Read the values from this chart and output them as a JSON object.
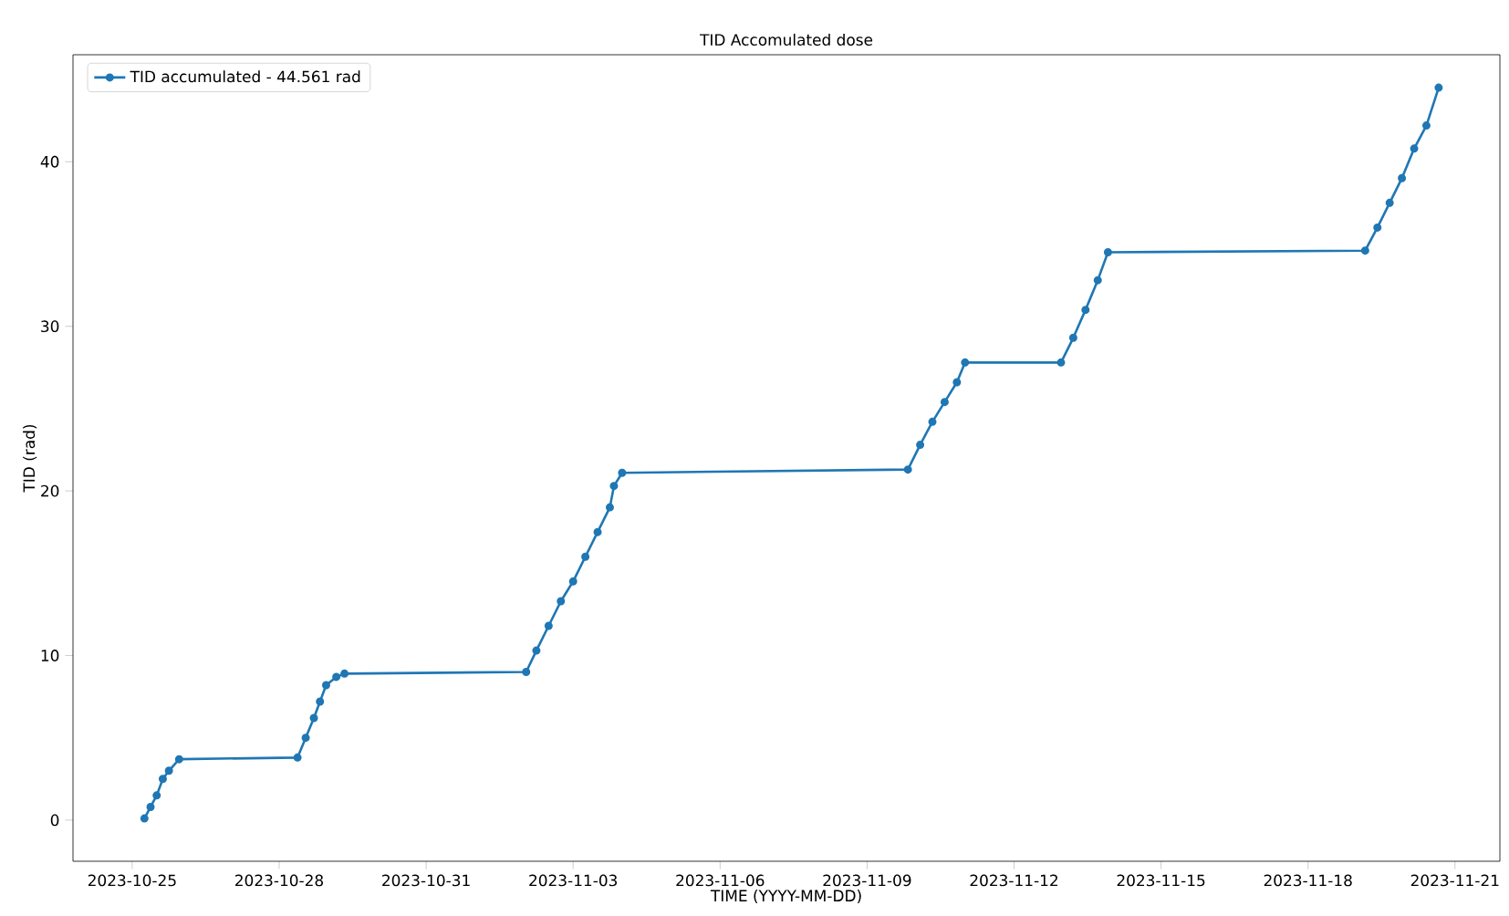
{
  "chart_data": {
    "type": "line",
    "title": "TID Accomulated dose",
    "xlabel": "TIME (YYYY-MM-DD)",
    "ylabel": "TID (rad)",
    "x": [
      "2023-10-25T06:00",
      "2023-10-25T09:00",
      "2023-10-25T12:00",
      "2023-10-25T15:00",
      "2023-10-25T18:00",
      "2023-10-25T23:00",
      "2023-10-28T09:00",
      "2023-10-28T13:00",
      "2023-10-28T17:00",
      "2023-10-28T20:00",
      "2023-10-28T23:00",
      "2023-10-29T04:00",
      "2023-10-29T08:00",
      "2023-11-02T01:00",
      "2023-11-02T06:00",
      "2023-11-02T12:00",
      "2023-11-02T18:00",
      "2023-11-03T00:00",
      "2023-11-03T06:00",
      "2023-11-03T12:00",
      "2023-11-03T18:00",
      "2023-11-03T20:00",
      "2023-11-04T00:00",
      "2023-11-09T20:00",
      "2023-11-10T02:00",
      "2023-11-10T08:00",
      "2023-11-10T14:00",
      "2023-11-10T20:00",
      "2023-11-11T00:00",
      "2023-11-12T23:00",
      "2023-11-13T05:00",
      "2023-11-13T11:00",
      "2023-11-13T17:00",
      "2023-11-13T22:00",
      "2023-11-19T04:00",
      "2023-11-19T10:00",
      "2023-11-19T16:00",
      "2023-11-19T22:00",
      "2023-11-20T04:00",
      "2023-11-20T10:00",
      "2023-11-20T16:00"
    ],
    "series": [
      {
        "name": "TID accumulated - 44.561 rad",
        "color": "#1f77b4",
        "values": [
          0.1,
          0.8,
          1.5,
          2.5,
          3.0,
          3.7,
          3.8,
          5.0,
          6.2,
          7.2,
          8.2,
          8.7,
          8.9,
          9.0,
          10.3,
          11.8,
          13.3,
          14.5,
          16.0,
          17.5,
          19.0,
          20.3,
          21.1,
          21.3,
          22.8,
          24.2,
          25.4,
          26.6,
          27.8,
          27.8,
          29.3,
          31.0,
          32.8,
          34.5,
          34.6,
          36.0,
          37.5,
          39.0,
          40.8,
          42.2,
          44.5
        ]
      }
    ],
    "xlim": [
      "2023-10-23T19:00",
      "2023-11-21T22:00"
    ],
    "ylim": [
      -2.5,
      46.5
    ],
    "xticks": [
      "2023-10-25",
      "2023-10-28",
      "2023-10-31",
      "2023-11-03",
      "2023-11-06",
      "2023-11-09",
      "2023-11-12",
      "2023-11-15",
      "2023-11-18",
      "2023-11-21"
    ],
    "yticks": [
      0,
      10,
      20,
      30,
      40
    ],
    "legend": "top left",
    "marker": "circle",
    "line_style": "solid"
  }
}
